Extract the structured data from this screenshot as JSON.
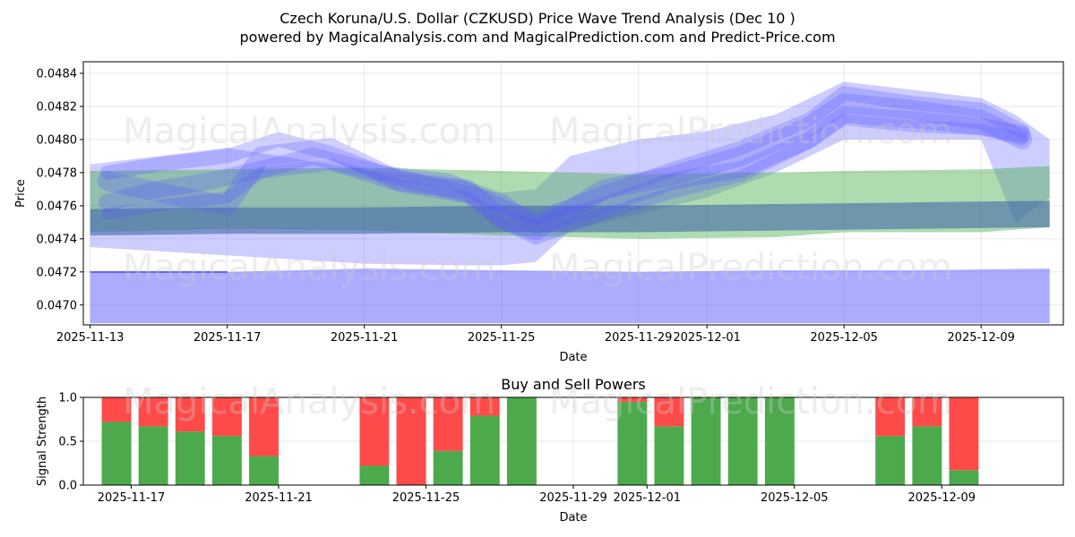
{
  "header": {
    "title": "Czech Koruna/U.S. Dollar (CZKUSD) Price Wave Trend Analysis (Dec 10 )",
    "subtitle": "powered by MagicalAnalysis.com and MagicalPrediction.com and Predict-Price.com"
  },
  "watermarks": [
    "MagicalAnalysis.com",
    "MagicalPrediction.com"
  ],
  "colors": {
    "wave": "#5a5aff",
    "band": "#4caf50",
    "buy": "#4caa4c",
    "sell": "#ff4a4a"
  },
  "chart_data": [
    {
      "type": "area",
      "id": "price-wave",
      "xlabel": "Date",
      "ylabel": "Price",
      "xlim": [
        -0.2,
        28.4
      ],
      "ylim": [
        0.04688,
        0.04847
      ],
      "grid": true,
      "x_ticks": [
        {
          "x": 0,
          "label": "2025-11-13"
        },
        {
          "x": 4,
          "label": "2025-11-17"
        },
        {
          "x": 8,
          "label": "2025-11-21"
        },
        {
          "x": 12,
          "label": "2025-11-25"
        },
        {
          "x": 16,
          "label": "2025-11-29"
        },
        {
          "x": 18,
          "label": "2025-12-01"
        },
        {
          "x": 22,
          "label": "2025-12-05"
        },
        {
          "x": 26,
          "label": "2025-12-09"
        }
      ],
      "y_ticks": [
        0.047,
        0.0472,
        0.0474,
        0.0476,
        0.0478,
        0.048,
        0.0482,
        0.0484
      ],
      "y_tick_labels": [
        "0.0470",
        "0.0472",
        "0.0474",
        "0.0476",
        "0.0478",
        "0.0480",
        "0.0482",
        "0.0484"
      ],
      "green_band": {
        "x": [
          0,
          4,
          8,
          12,
          16,
          20,
          22,
          26,
          28
        ],
        "upper": [
          0.04781,
          0.04782,
          0.04783,
          0.04781,
          0.04779,
          0.0478,
          0.04781,
          0.04782,
          0.04784
        ],
        "lower": [
          0.04744,
          0.04746,
          0.04745,
          0.04742,
          0.0474,
          0.04741,
          0.04744,
          0.04744,
          0.04747
        ]
      },
      "blue_band": {
        "x": [
          0,
          4,
          8,
          12,
          16,
          20,
          24,
          28
        ],
        "upper": [
          0.0472,
          0.0472,
          0.04722,
          0.04721,
          0.0472,
          0.04721,
          0.04721,
          0.04722
        ],
        "lower": [
          0.04689,
          0.04689,
          0.04689,
          0.04689,
          0.04689,
          0.04689,
          0.04689,
          0.04689
        ]
      },
      "steel_band": {
        "x": [
          0,
          4,
          8,
          12,
          16,
          20,
          24,
          28
        ],
        "upper": [
          0.04758,
          0.04759,
          0.04759,
          0.0476,
          0.0476,
          0.04761,
          0.04762,
          0.04763
        ],
        "lower": [
          0.04742,
          0.04743,
          0.04743,
          0.04744,
          0.04744,
          0.04745,
          0.04746,
          0.04747
        ]
      },
      "waves": [
        {
          "x": [
            0.5,
            2,
            4,
            5,
            7,
            9,
            11,
            12,
            13,
            15,
            17,
            19,
            21,
            22,
            24,
            26,
            27.2
          ],
          "y": [
            0.04775,
            0.04768,
            0.0476,
            0.0479,
            0.04795,
            0.04775,
            0.0477,
            0.04752,
            0.04745,
            0.0477,
            0.04778,
            0.0479,
            0.04808,
            0.04822,
            0.04818,
            0.04812,
            0.048
          ]
        },
        {
          "x": [
            0.5,
            2,
            3.5,
            5,
            6.5,
            8,
            10,
            12,
            13,
            15,
            17,
            19,
            21,
            22,
            24,
            26,
            27.2
          ],
          "y": [
            0.04762,
            0.0477,
            0.04775,
            0.04782,
            0.0479,
            0.04782,
            0.04772,
            0.04762,
            0.04748,
            0.0476,
            0.04775,
            0.04782,
            0.048,
            0.04815,
            0.04812,
            0.04808,
            0.04803
          ]
        },
        {
          "x": [
            0.5,
            2,
            4,
            5.5,
            7,
            8.5,
            10.5,
            12,
            13,
            15,
            17,
            19,
            21,
            22,
            24,
            26,
            27.2
          ],
          "y": [
            0.0478,
            0.04785,
            0.0479,
            0.048,
            0.04792,
            0.0478,
            0.04775,
            0.0476,
            0.04752,
            0.04768,
            0.04782,
            0.04795,
            0.04812,
            0.04828,
            0.04822,
            0.04818,
            0.04805
          ]
        },
        {
          "x": [
            0.5,
            2,
            4,
            5,
            7,
            9,
            11,
            12,
            13,
            15,
            17,
            19,
            21,
            22,
            24,
            26,
            27.2
          ],
          "y": [
            0.04755,
            0.0476,
            0.04765,
            0.0478,
            0.04785,
            0.04772,
            0.04765,
            0.0475,
            0.0474,
            0.04755,
            0.04768,
            0.04778,
            0.04798,
            0.04812,
            0.04808,
            0.04806,
            0.048
          ]
        }
      ],
      "wide_wave": {
        "x": [
          0,
          4,
          8,
          11,
          12,
          13,
          14,
          16,
          18,
          20,
          22,
          24,
          26,
          27,
          28
        ],
        "upper": [
          0.04785,
          0.04795,
          0.04782,
          0.04775,
          0.04768,
          0.0477,
          0.0479,
          0.048,
          0.04805,
          0.04815,
          0.04835,
          0.0483,
          0.04825,
          0.04815,
          0.048
        ],
        "lower": [
          0.04735,
          0.0473,
          0.04725,
          0.04724,
          0.04724,
          0.04726,
          0.04745,
          0.04755,
          0.04765,
          0.0478,
          0.048,
          0.048,
          0.048,
          0.0475,
          0.04765
        ]
      },
      "flat_line": {
        "x": [
          0,
          4
        ],
        "y": [
          0.0472,
          0.0472
        ]
      }
    },
    {
      "type": "bar",
      "id": "buy-sell",
      "title": "Buy and Sell Powers",
      "xlabel": "Date",
      "ylabel": "Signal Strength",
      "xlim": [
        -1.3,
        25.3
      ],
      "ylim": [
        0,
        1
      ],
      "grid": true,
      "x_ticks": [
        {
          "x": 0,
          "label": "2025-11-17"
        },
        {
          "x": 4,
          "label": "2025-11-21"
        },
        {
          "x": 8,
          "label": "2025-11-25"
        },
        {
          "x": 12,
          "label": "2025-11-29"
        },
        {
          "x": 14,
          "label": "2025-12-01"
        },
        {
          "x": 18,
          "label": "2025-12-05"
        },
        {
          "x": 22,
          "label": "2025-12-09"
        }
      ],
      "y_ticks": [
        0,
        0.5,
        1
      ],
      "y_tick_labels": [
        "0.0",
        "0.5",
        "1.0"
      ],
      "x": [
        -0.4,
        0.6,
        1.6,
        2.6,
        3.6,
        6.6,
        7.6,
        8.6,
        9.6,
        10.6,
        13.6,
        14.6,
        15.6,
        16.6,
        17.6,
        20.6,
        21.6,
        22.6
      ],
      "buy": [
        0.72,
        0.67,
        0.61,
        0.56,
        0.33,
        0.22,
        0.0,
        0.39,
        0.79,
        1.0,
        0.95,
        0.67,
        1.0,
        1.0,
        1.0,
        0.56,
        0.67,
        0.17
      ],
      "sell": [
        0.28,
        0.33,
        0.39,
        0.44,
        0.67,
        0.78,
        1.0,
        0.61,
        0.21,
        0.0,
        0.05,
        0.33,
        0.0,
        0.0,
        0.0,
        0.44,
        0.33,
        0.83
      ]
    }
  ]
}
